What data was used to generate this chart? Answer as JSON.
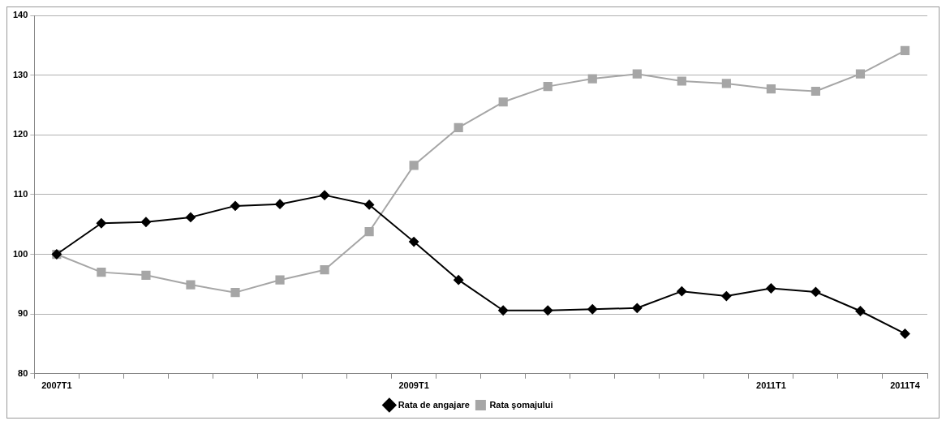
{
  "chart_data": {
    "type": "line",
    "categories": [
      "2007T1",
      null,
      null,
      null,
      null,
      null,
      null,
      null,
      "2009T1",
      null,
      null,
      null,
      null,
      null,
      null,
      null,
      "2011T1",
      null,
      null,
      "2011T4"
    ],
    "series": [
      {
        "name": "Rata de angajare",
        "color": "#000000",
        "marker": "diamond",
        "values": [
          100,
          105.2,
          105.4,
          106.2,
          108.1,
          108.4,
          109.9,
          108.3,
          102.1,
          95.7,
          90.6,
          90.6,
          90.8,
          91.0,
          93.8,
          93.0,
          94.3,
          93.7,
          90.5,
          86.7
        ]
      },
      {
        "name": "Rata şomajului",
        "color": "#a6a6a6",
        "marker": "square",
        "values": [
          100,
          97.0,
          96.5,
          94.9,
          93.6,
          95.7,
          97.4,
          103.8,
          114.9,
          121.2,
          125.5,
          128.1,
          129.4,
          130.2,
          129.0,
          128.6,
          127.7,
          127.3,
          130.2,
          134.1
        ]
      }
    ],
    "ylim": [
      80,
      140
    ],
    "yticks": [
      80,
      90,
      100,
      110,
      120,
      130,
      140
    ],
    "grid": "y",
    "legend": "bottom",
    "line_style": "solid"
  }
}
